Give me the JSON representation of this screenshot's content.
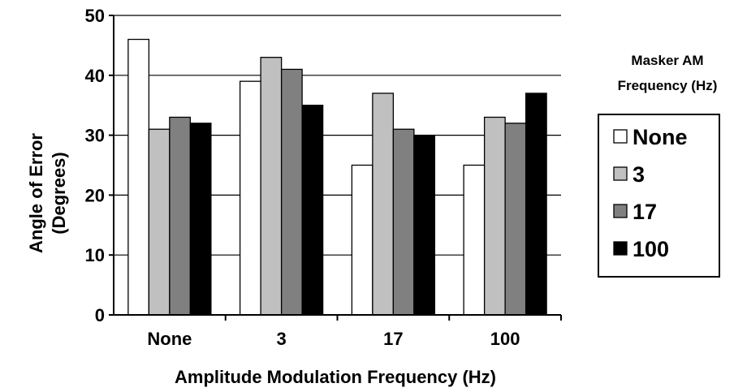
{
  "chart_data": {
    "type": "bar",
    "categories": [
      "None",
      "3",
      "17",
      "100"
    ],
    "series": [
      {
        "name": "None",
        "values": [
          46,
          39,
          25,
          25
        ],
        "color": "#ffffff"
      },
      {
        "name": "3",
        "values": [
          31,
          43,
          37,
          33
        ],
        "color": "#c0c0c0"
      },
      {
        "name": "17",
        "values": [
          33,
          41,
          31,
          32
        ],
        "color": "#808080"
      },
      {
        "name": "100",
        "values": [
          32,
          35,
          30,
          37
        ],
        "color": "#000000"
      }
    ],
    "title": "",
    "xlabel": "Amplitude Modulation Frequency (Hz)",
    "ylabel_lines": [
      "Angle of Error",
      "(Degrees)"
    ],
    "ylim": [
      0,
      50
    ],
    "yticks": [
      "0",
      "10",
      "20",
      "30",
      "40",
      "50"
    ],
    "grid": true,
    "legend": {
      "title_lines": [
        "Masker AM",
        "Frequency (Hz)"
      ],
      "placement": "right"
    }
  }
}
